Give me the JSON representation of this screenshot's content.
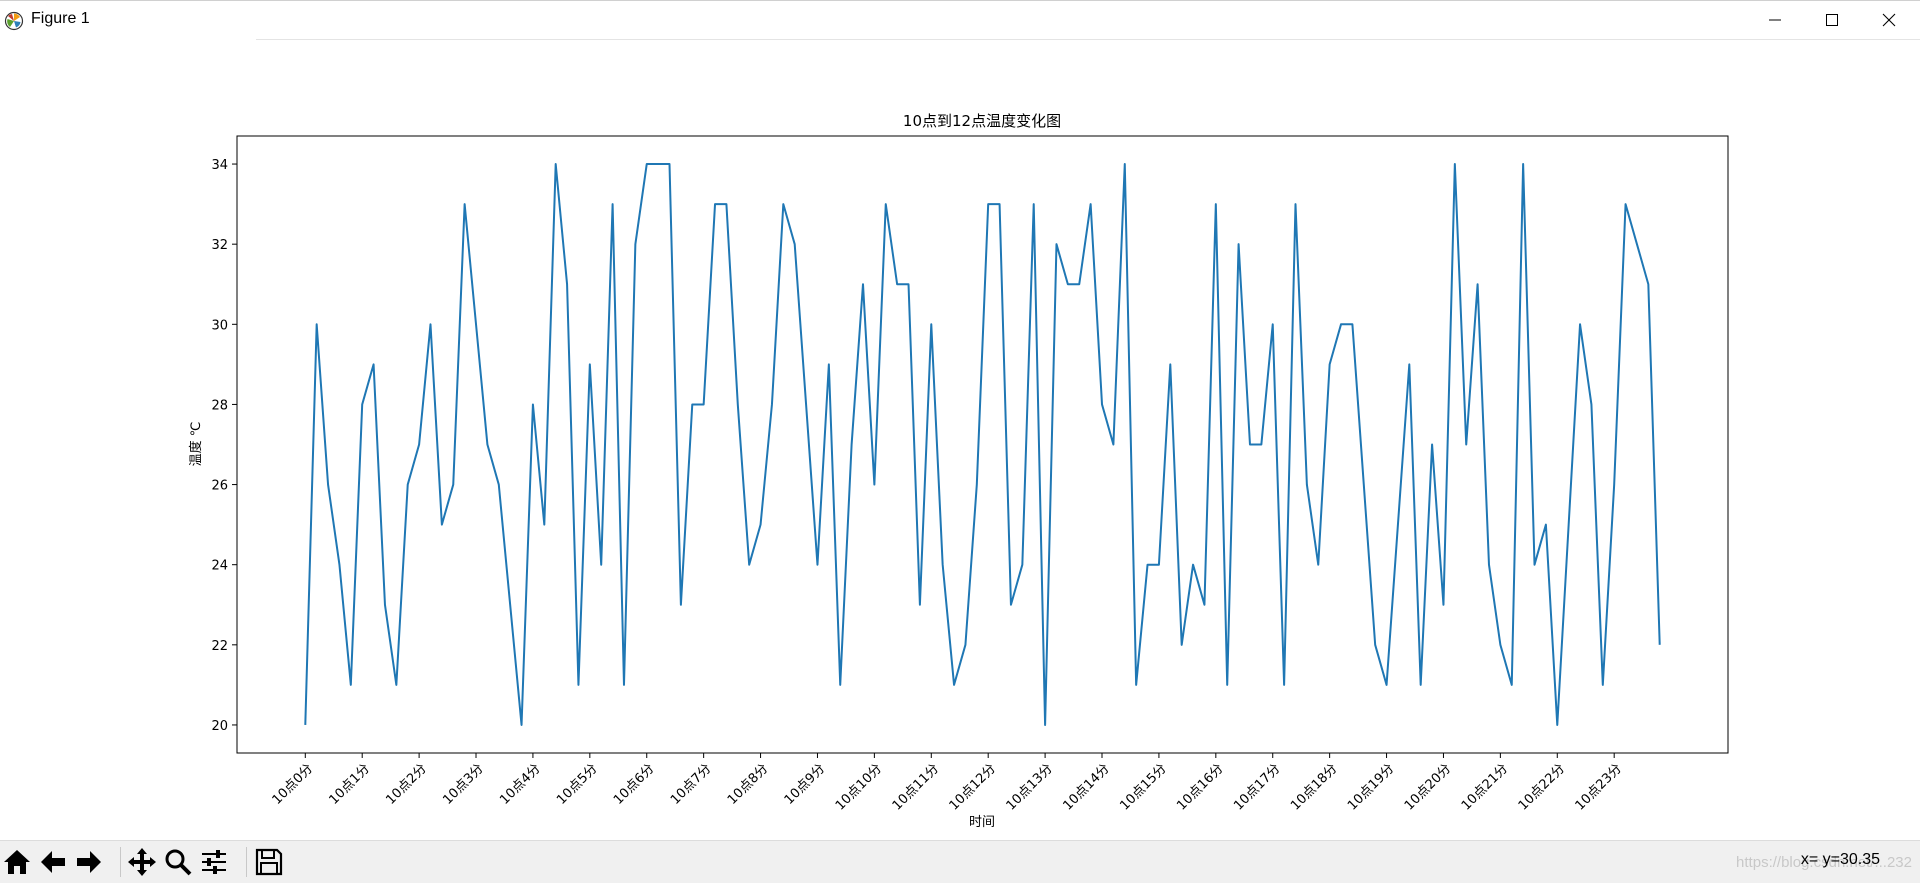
{
  "window": {
    "title": "Figure 1",
    "icons": [
      "matplotlib-logo-icon",
      "minimize-icon",
      "maximize-icon",
      "close-icon"
    ]
  },
  "toolbar": {
    "buttons": [
      "home-icon",
      "back-icon",
      "forward-icon",
      "pan-icon",
      "zoom-icon",
      "configure-subplots-icon",
      "save-icon"
    ],
    "coord_readout": "x= y=30.35",
    "watermark": "https://blog.csdn.net/...232"
  },
  "chart_data": {
    "type": "line",
    "title": "10点到12点温度变化图",
    "xlabel": "时间",
    "ylabel": "温度 ℃",
    "x_tick_labels": [
      "10点0分",
      "10点1分",
      "10点2分",
      "10点3分",
      "10点4分",
      "10点5分",
      "10点6分",
      "10点7分",
      "10点8分",
      "10点9分",
      "10点10分",
      "10点11分",
      "10点12分",
      "10点13分",
      "10点14分",
      "10点15分",
      "10点16分",
      "10点17分",
      "10点18分",
      "10点19分",
      "10点20分",
      "10点21分",
      "10点22分",
      "10点23分"
    ],
    "x_tick_step": 5,
    "y_ticks": [
      20,
      22,
      24,
      26,
      28,
      30,
      32,
      34
    ],
    "xlim": [
      -6,
      125
    ],
    "ylim": [
      19.3,
      34.7
    ],
    "grid": false,
    "series": [
      {
        "color": "#1f77b4",
        "values": [
          20,
          30,
          26,
          24,
          21,
          28,
          29,
          23,
          21,
          26,
          27,
          30,
          25,
          26,
          33,
          30,
          27,
          26,
          23,
          20,
          28,
          25,
          34,
          31,
          21,
          29,
          24,
          33,
          21,
          32,
          34,
          34,
          34,
          23,
          28,
          28,
          33,
          33,
          28,
          24,
          25,
          28,
          33,
          32,
          28,
          24,
          29,
          21,
          27,
          31,
          26,
          33,
          31,
          31,
          23,
          30,
          24,
          21,
          22,
          26,
          33,
          33,
          23,
          24,
          33,
          20,
          32,
          31,
          31,
          33,
          28,
          27,
          34,
          21,
          24,
          24,
          29,
          22,
          24,
          23,
          33,
          21,
          32,
          27,
          27,
          30,
          21,
          33,
          26,
          24,
          29,
          30,
          30,
          26,
          22,
          21,
          25,
          29,
          21,
          27,
          23,
          34,
          27,
          31,
          24,
          22,
          21,
          34,
          24,
          25,
          20,
          25,
          30,
          28,
          21,
          26,
          33,
          32,
          31,
          22
        ]
      }
    ]
  }
}
